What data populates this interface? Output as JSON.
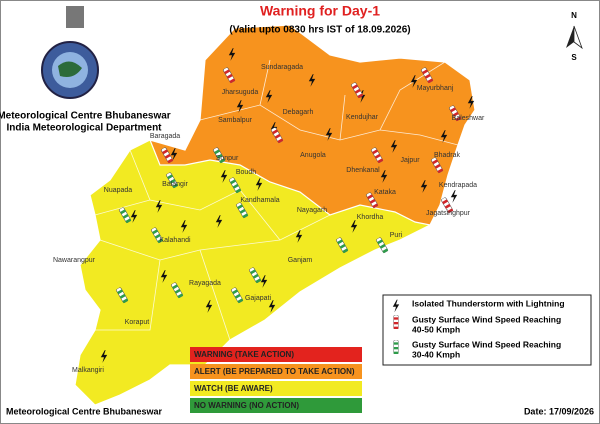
{
  "header": {
    "title": "Warning for Day-1",
    "subtitle": "(Valid upto 0830 hrs IST of 18.09.2026)",
    "org": [
      "Meteorological Centre Bhubaneswar",
      "India Meteorological Department"
    ]
  },
  "compass": {
    "north": "N",
    "south": "S"
  },
  "districts": [
    "Sundaragada",
    "Jharsuguda",
    "Sambalpur",
    "Debagarh",
    "Kendujhar",
    "Mayurbhanj",
    "Baleshwar",
    "Baragada",
    "Anugola",
    "Dhenkanal",
    "Jajpur",
    "Bhadrak",
    "Kendrapada",
    "Jagatsinghpur",
    "Kataka",
    "Khordha",
    "Puri",
    "Sonpur",
    "Boudh",
    "Nuapada",
    "Balangir",
    "Kalahandi",
    "Kandhamala",
    "Nayagarh",
    "Ganjam",
    "Nawarangpur",
    "Rayagada",
    "Gajapati",
    "Koraput",
    "Malkangiri"
  ],
  "legend": {
    "items": [
      [
        "Isolated Thunderstorm with Lightning"
      ],
      [
        "Gusty Surface Wind Speed Reaching",
        "40-50 Kmph"
      ],
      [
        "Gusty Surface Wind Speed Reaching",
        "30-40 Kmph"
      ]
    ]
  },
  "warning_levels": [
    {
      "label": "WARNING (TAKE ACTION)",
      "color": "#e3231e"
    },
    {
      "label": "ALERT (BE PREPARED TO TAKE ACTION)",
      "color": "#f7931e"
    },
    {
      "label": "WATCH (BE AWARE)",
      "color": "#f2ea22"
    },
    {
      "label": "NO WARNING (NO ACTION)",
      "color": "#2f9a3a"
    }
  ],
  "footer": {
    "left": "Meteorological Centre Bhubaneswar",
    "date": "Date: 17/09/2026"
  }
}
